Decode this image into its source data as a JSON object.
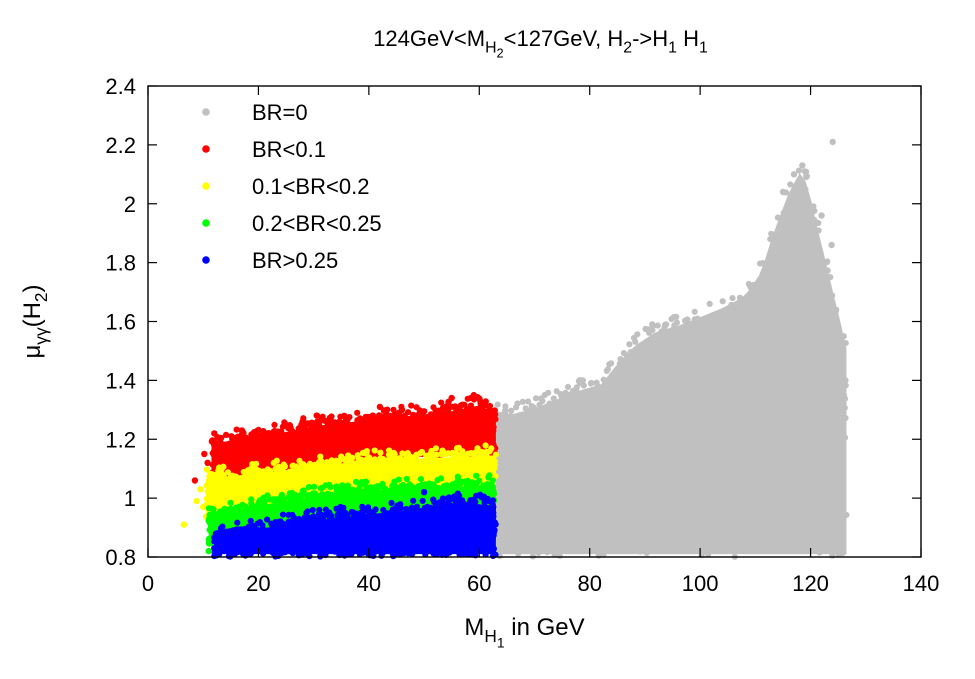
{
  "chart_data": {
    "type": "scatter",
    "title": {
      "parts": [
        {
          "text": "124GeV<M"
        },
        {
          "text": "H",
          "sub": true
        },
        {
          "text": "2",
          "sub2": true
        },
        {
          "text": "<127GeV, H"
        },
        {
          "text": "2",
          "sub": true
        },
        {
          "text": "->H"
        },
        {
          "text": "1",
          "sub": true
        },
        {
          "text": " H"
        },
        {
          "text": "1",
          "sub": true
        }
      ]
    },
    "xlabel": {
      "parts": [
        {
          "text": "M"
        },
        {
          "text": "H",
          "sub": true
        },
        {
          "text": "1",
          "sub2": true
        },
        {
          "text": " in GeV"
        }
      ]
    },
    "ylabel": {
      "parts": [
        {
          "text": "μ"
        },
        {
          "text": "γγ",
          "sub": true
        },
        {
          "text": "(H"
        },
        {
          "text": "2",
          "sub": true
        },
        {
          "text": ")"
        }
      ]
    },
    "xlim": [
      0,
      140
    ],
    "ylim": [
      0.8,
      2.4
    ],
    "xticks": [
      "0",
      "20",
      "40",
      "60",
      "80",
      "100",
      "120",
      "140"
    ],
    "yticks": [
      "0.8",
      "1",
      "1.2",
      "1.4",
      "1.6",
      "1.8",
      "2",
      "2.2",
      "2.4"
    ],
    "grid": false,
    "legend_position": "top-left",
    "series": [
      {
        "name": "BR=0",
        "color": "#c0c0c0",
        "region": {
          "x_range": [
            63,
            126.5
          ],
          "lower_y": 0.8,
          "upper_envelope": [
            [
              63,
              1.31
            ],
            [
              66,
              1.3
            ],
            [
              70,
              1.32
            ],
            [
              74,
              1.35
            ],
            [
              78,
              1.38
            ],
            [
              82,
              1.4
            ],
            [
              85,
              1.47
            ],
            [
              88,
              1.53
            ],
            [
              92,
              1.58
            ],
            [
              96,
              1.6
            ],
            [
              100,
              1.63
            ],
            [
              104,
              1.66
            ],
            [
              108,
              1.7
            ],
            [
              111,
              1.78
            ],
            [
              113,
              1.9
            ],
            [
              116,
              2.05
            ],
            [
              118,
              2.12
            ],
            [
              119.5,
              2.08
            ],
            [
              121,
              1.95
            ],
            [
              123,
              1.8
            ],
            [
              124.5,
              1.68
            ],
            [
              126,
              1.57
            ],
            [
              126.5,
              1.52
            ]
          ]
        },
        "points": [
          [
            124,
            2.21
          ],
          [
            118.5,
            2.13
          ],
          [
            117,
            2.1
          ],
          [
            119,
            2.11
          ],
          [
            115,
            2.04
          ],
          [
            123.8,
            1.86
          ],
          [
            122,
            1.96
          ],
          [
            126,
            1.55
          ],
          [
            126.3,
            1.4
          ]
        ]
      },
      {
        "name": "BR<0.1",
        "color": "#ff0000",
        "region": {
          "x_range": [
            11.5,
            63
          ],
          "lower_envelope": [
            [
              11.5,
              1.02
            ],
            [
              20,
              1.08
            ],
            [
              30,
              1.1
            ],
            [
              40,
              1.12
            ],
            [
              50,
              1.13
            ],
            [
              63,
              1.14
            ]
          ],
          "upper_envelope": [
            [
              11.5,
              1.2
            ],
            [
              15,
              1.21
            ],
            [
              20,
              1.22
            ],
            [
              25,
              1.24
            ],
            [
              30,
              1.26
            ],
            [
              35,
              1.27
            ],
            [
              40,
              1.28
            ],
            [
              45,
              1.29
            ],
            [
              50,
              1.3
            ],
            [
              55,
              1.31
            ],
            [
              60,
              1.33
            ],
            [
              63,
              1.3
            ]
          ]
        },
        "points": [
          [
            10.2,
            1.15
          ],
          [
            10.8,
            1.12
          ],
          [
            12,
            1.22
          ],
          [
            17,
            1.23
          ],
          [
            28,
            1.26
          ],
          [
            42,
            1.31
          ],
          [
            46,
            1.3
          ],
          [
            55,
            1.34
          ],
          [
            59,
            1.35
          ],
          [
            8.5,
            1.06
          ]
        ]
      },
      {
        "name": "0.1<BR<0.2",
        "color": "#ffff00",
        "region": {
          "x_range": [
            10.5,
            63
          ],
          "lower_envelope": [
            [
              10.5,
              0.92
            ],
            [
              20,
              0.96
            ],
            [
              30,
              0.99
            ],
            [
              40,
              1.01
            ],
            [
              50,
              1.02
            ],
            [
              63,
              1.03
            ]
          ],
          "upper_envelope": [
            [
              10.5,
              1.08
            ],
            [
              20,
              1.1
            ],
            [
              30,
              1.12
            ],
            [
              40,
              1.14
            ],
            [
              50,
              1.15
            ],
            [
              63,
              1.16
            ]
          ]
        },
        "points": [
          [
            6.5,
            0.91
          ],
          [
            8.8,
            0.99
          ],
          [
            9.5,
            1.03
          ],
          [
            10,
            0.97
          ]
        ]
      },
      {
        "name": "0.2<BR<0.25",
        "color": "#00ff00",
        "region": {
          "x_range": [
            11,
            63
          ],
          "lower_envelope": [
            [
              11,
              0.84
            ],
            [
              20,
              0.88
            ],
            [
              30,
              0.91
            ],
            [
              40,
              0.93
            ],
            [
              50,
              0.94
            ],
            [
              63,
              0.95
            ]
          ],
          "upper_envelope": [
            [
              11,
              0.95
            ],
            [
              20,
              0.99
            ],
            [
              30,
              1.02
            ],
            [
              40,
              1.04
            ],
            [
              50,
              1.05
            ],
            [
              63,
              1.06
            ]
          ]
        },
        "points": [
          [
            11,
            0.82
          ],
          [
            11.8,
            0.88
          ]
        ]
      },
      {
        "name": "BR>0.25",
        "color": "#0000ff",
        "region": {
          "x_range": [
            12,
            63
          ],
          "lower_y": 0.8,
          "upper_envelope": [
            [
              12,
              0.88
            ],
            [
              20,
              0.91
            ],
            [
              30,
              0.94
            ],
            [
              40,
              0.96
            ],
            [
              50,
              0.98
            ],
            [
              55,
              1.0
            ],
            [
              63,
              0.99
            ]
          ]
        },
        "points": [
          [
            12,
            0.83
          ],
          [
            13,
            0.86
          ],
          [
            50,
            1.02
          ],
          [
            56,
            1.01
          ]
        ]
      }
    ]
  }
}
